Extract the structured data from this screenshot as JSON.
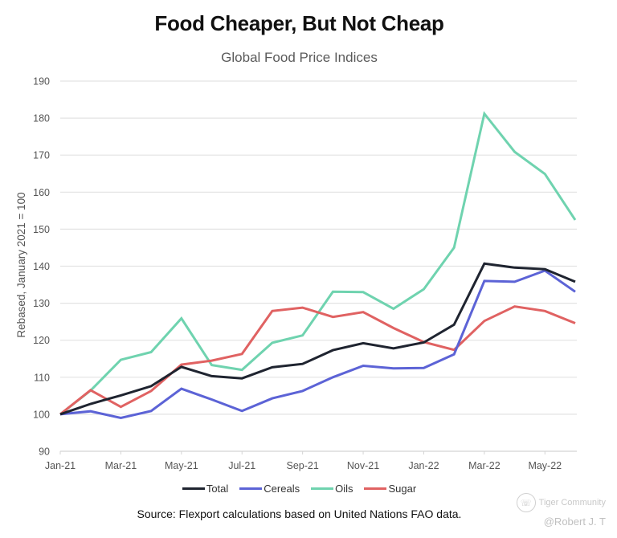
{
  "header": {
    "title": "Food Cheaper, But Not Cheap",
    "subtitle": "Global Food Price Indices"
  },
  "chart_data": {
    "type": "line",
    "title": "Food Cheaper, But Not Cheap",
    "subtitle": "Global Food Price Indices",
    "xlabel": "",
    "ylabel": "Rebased, January 2021 = 100",
    "ylim": [
      90,
      190
    ],
    "yticks": [
      90,
      100,
      110,
      120,
      130,
      140,
      150,
      160,
      170,
      180,
      190
    ],
    "grid": true,
    "legend_position": "bottom",
    "x": [
      "Jan-21",
      "Feb-21",
      "Mar-21",
      "Apr-21",
      "May-21",
      "Jun-21",
      "Jul-21",
      "Aug-21",
      "Sep-21",
      "Oct-21",
      "Nov-21",
      "Dec-21",
      "Jan-22",
      "Feb-22",
      "Mar-22",
      "Apr-22",
      "May-22",
      "Jun-22"
    ],
    "xtick_labels": [
      "Jan-21",
      "",
      "Mar-21",
      "",
      "May-21",
      "",
      "Jul-21",
      "",
      "Sep-21",
      "",
      "Nov-21",
      "",
      "Jan-22",
      "",
      "Mar-22",
      "",
      "May-22",
      ""
    ],
    "series": [
      {
        "name": "Total",
        "color": "#1f2430",
        "values": [
          100,
          102.8,
          105.1,
          107.6,
          112.8,
          110.3,
          109.7,
          112.7,
          113.6,
          117.3,
          119.2,
          117.8,
          119.4,
          124.2,
          140.7,
          139.6,
          139.2,
          135.8
        ]
      },
      {
        "name": "Cereals",
        "color": "#5c63d6",
        "values": [
          100,
          100.8,
          99.0,
          100.9,
          106.9,
          104.0,
          100.9,
          104.3,
          106.3,
          110.0,
          113.1,
          112.4,
          112.5,
          116.2,
          136.0,
          135.8,
          138.8,
          133.1
        ]
      },
      {
        "name": "Oils",
        "color": "#6fd3af",
        "values": [
          100,
          106.4,
          114.7,
          116.8,
          125.9,
          113.3,
          112.0,
          119.3,
          121.3,
          133.1,
          133.0,
          128.5,
          133.8,
          145.0,
          181.2,
          170.9,
          164.9,
          152.5
        ]
      },
      {
        "name": "Sugar",
        "color": "#e06262",
        "values": [
          100,
          106.5,
          102.0,
          106.3,
          113.4,
          114.5,
          116.3,
          127.9,
          128.8,
          126.3,
          127.6,
          123.3,
          119.5,
          117.4,
          125.2,
          129.1,
          127.9,
          124.6
        ]
      }
    ]
  },
  "legend": [
    {
      "label": "Total",
      "color": "#1f2430"
    },
    {
      "label": "Cereals",
      "color": "#5c63d6"
    },
    {
      "label": "Oils",
      "color": "#6fd3af"
    },
    {
      "label": "Sugar",
      "color": "#e06262"
    }
  ],
  "footer": {
    "source": "Source: Flexport calculations based on United Nations FAO data."
  },
  "watermark": {
    "brand": "Tiger Community",
    "author": "@Robert J. T"
  }
}
